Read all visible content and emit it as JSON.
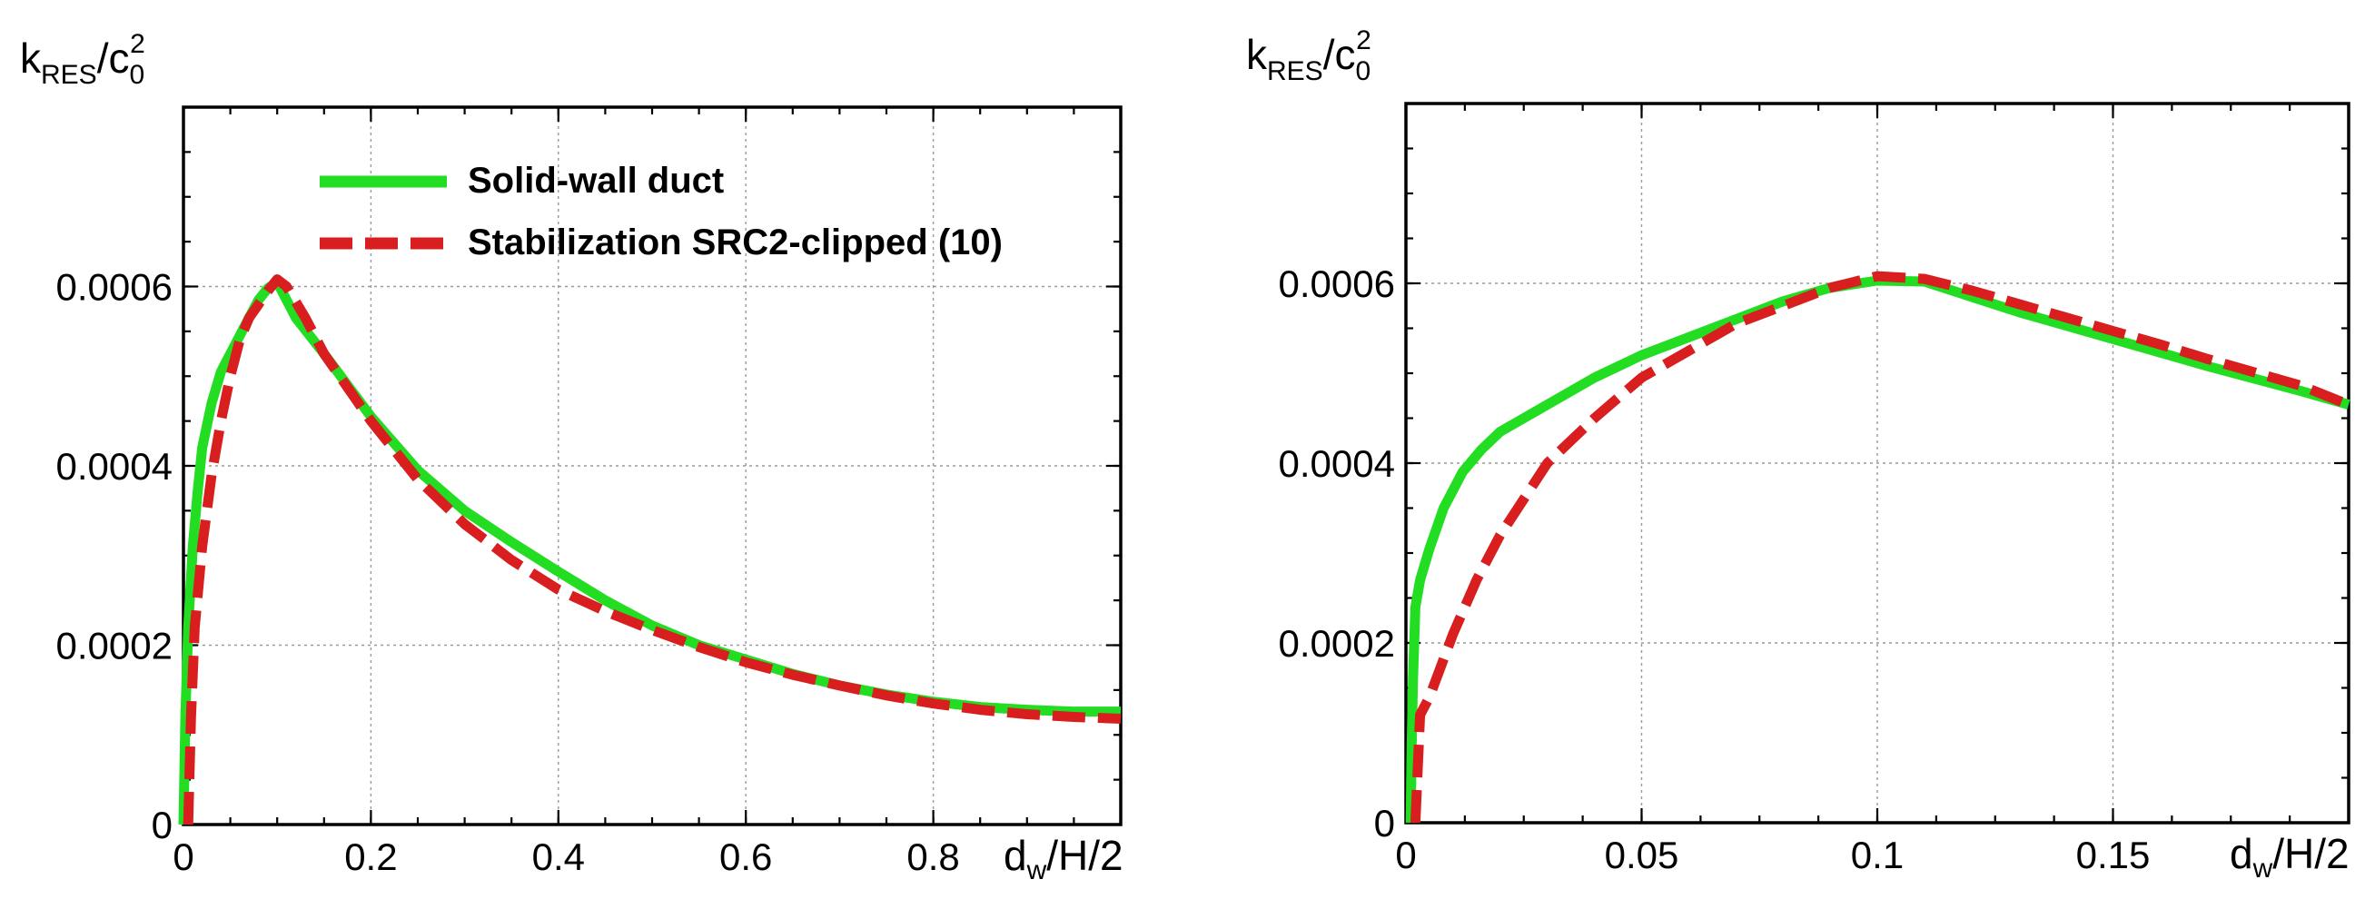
{
  "chart_data": [
    {
      "type": "line",
      "panel": "left",
      "title": "",
      "ylabel": {
        "base": "k",
        "sub": "RES",
        "slash": "/c",
        "sub2": "0",
        "sup": "2"
      },
      "xlabel": {
        "base": "d",
        "sub": "w",
        "rest": "/H/2"
      },
      "xlim": [
        0,
        1
      ],
      "ylim": [
        0,
        0.0008
      ],
      "xticks": [
        0,
        0.2,
        0.4,
        0.6,
        0.8
      ],
      "xtick_labels": [
        "0",
        "0.2",
        "0.4",
        "0.6",
        "0.8"
      ],
      "yticks": [
        0,
        0.0002,
        0.0004,
        0.0006
      ],
      "ytick_labels": [
        "0",
        "0.0002",
        "0.0004",
        "0.0006"
      ],
      "grid": true,
      "legend_position": "top-center",
      "series": [
        {
          "name": "Solid-wall duct",
          "color": "#22dd22",
          "style": "solid",
          "x": [
            0,
            0.002,
            0.005,
            0.01,
            0.015,
            0.02,
            0.03,
            0.04,
            0.05,
            0.06,
            0.07,
            0.08,
            0.09,
            0.1,
            0.12,
            0.15,
            0.2,
            0.25,
            0.3,
            0.35,
            0.4,
            0.45,
            0.5,
            0.55,
            0.6,
            0.65,
            0.7,
            0.75,
            0.8,
            0.85,
            0.9,
            0.95,
            1.0
          ],
          "y": [
            0,
            0.00012,
            0.00022,
            0.00031,
            0.00037,
            0.00042,
            0.00047,
            0.000505,
            0.000525,
            0.000545,
            0.000565,
            0.000585,
            0.000598,
            0.000605,
            0.000565,
            0.000525,
            0.000455,
            0.000395,
            0.00035,
            0.000315,
            0.000282,
            0.00025,
            0.000222,
            0.0002,
            0.000184,
            0.000168,
            0.000155,
            0.000145,
            0.000137,
            0.000131,
            0.000128,
            0.000126,
            0.000126
          ]
        },
        {
          "name": "Stabilization SRC2-clipped (10)",
          "color": "#d81e1e",
          "style": "dashed",
          "x": [
            0.005,
            0.008,
            0.012,
            0.02,
            0.03,
            0.04,
            0.05,
            0.06,
            0.07,
            0.08,
            0.09,
            0.1,
            0.11,
            0.13,
            0.15,
            0.2,
            0.25,
            0.3,
            0.35,
            0.4,
            0.45,
            0.5,
            0.55,
            0.6,
            0.65,
            0.7,
            0.75,
            0.8,
            0.85,
            0.9,
            0.95,
            1.0
          ],
          "y": [
            0,
            0.00012,
            0.00022,
            0.00031,
            0.00039,
            0.00045,
            0.0005,
            0.00054,
            0.000565,
            0.00058,
            0.000595,
            0.000608,
            0.0006,
            0.000565,
            0.000525,
            0.00045,
            0.000385,
            0.000335,
            0.000295,
            0.000262,
            0.000238,
            0.000217,
            0.000198,
            0.000181,
            0.000167,
            0.000155,
            0.000144,
            0.000135,
            0.000128,
            0.000123,
            0.00012,
            0.000118
          ]
        }
      ]
    },
    {
      "type": "line",
      "panel": "right",
      "title": "",
      "ylabel": {
        "base": "k",
        "sub": "RES",
        "slash": "/c",
        "sub2": "0",
        "sup": "2"
      },
      "xlabel": {
        "base": "d",
        "sub": "w",
        "rest": "/H/2"
      },
      "xlim": [
        0,
        0.2
      ],
      "ylim": [
        0,
        0.0008
      ],
      "xticks": [
        0,
        0.05,
        0.1,
        0.15
      ],
      "xtick_labels": [
        "0",
        "0.05",
        "0.1",
        "0.15"
      ],
      "yticks": [
        0,
        0.0002,
        0.0004,
        0.0006
      ],
      "ytick_labels": [
        "0",
        "0.0002",
        "0.0004",
        "0.0006"
      ],
      "grid": true,
      "series": [
        {
          "name": "Solid-wall duct",
          "color": "#22dd22",
          "style": "solid",
          "x": [
            0.001,
            0.0012,
            0.0015,
            0.002,
            0.003,
            0.005,
            0.008,
            0.012,
            0.016,
            0.02,
            0.025,
            0.03,
            0.04,
            0.05,
            0.06,
            0.07,
            0.08,
            0.09,
            0.1,
            0.11,
            0.12,
            0.13,
            0.14,
            0.15,
            0.16,
            0.17,
            0.18,
            0.19,
            0.2
          ],
          "y": [
            0,
            8e-05,
            0.00016,
            0.00024,
            0.00027,
            0.000305,
            0.00035,
            0.00039,
            0.000415,
            0.000435,
            0.00045,
            0.000465,
            0.000495,
            0.00052,
            0.00054,
            0.00056,
            0.00058,
            0.000595,
            0.000603,
            0.000602,
            0.000585,
            0.000568,
            0.000553,
            0.000538,
            0.000523,
            0.000508,
            0.000494,
            0.00048,
            0.000465
          ]
        },
        {
          "name": "Stabilization SRC2-clipped (10)",
          "color": "#d81e1e",
          "style": "dashed",
          "x": [
            0.002,
            0.0025,
            0.003,
            0.005,
            0.01,
            0.015,
            0.02,
            0.03,
            0.04,
            0.05,
            0.06,
            0.07,
            0.08,
            0.09,
            0.1,
            0.11,
            0.12,
            0.13,
            0.14,
            0.15,
            0.16,
            0.17,
            0.18,
            0.19,
            0.2
          ],
          "y": [
            0,
            6e-05,
            0.00012,
            0.00014,
            0.00021,
            0.00027,
            0.00032,
            0.0004,
            0.00045,
            0.000495,
            0.000525,
            0.000555,
            0.000575,
            0.000595,
            0.000608,
            0.000605,
            0.000592,
            0.000577,
            0.000562,
            0.000547,
            0.000532,
            0.000516,
            0.000501,
            0.000486,
            0.000465
          ]
        }
      ]
    }
  ]
}
